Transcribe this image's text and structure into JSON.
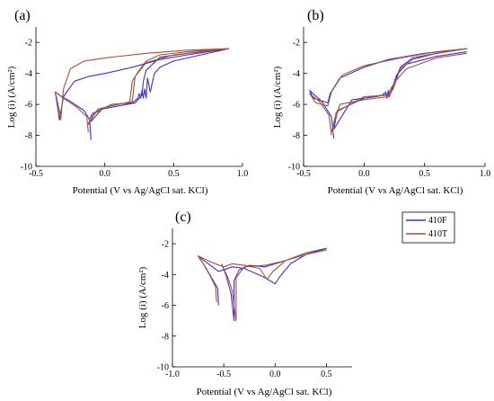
{
  "legend": {
    "entries": [
      {
        "name": "410F",
        "color": "#3b2fd6"
      },
      {
        "name": "410T",
        "color": "#a4523a"
      }
    ]
  },
  "chart_data": [
    {
      "panel": "(a)",
      "type": "line",
      "xlabel": "Potential (V vs Ag/AgCl sat. KCl)",
      "ylabel": "Log (i) (A/cm²)",
      "xlim": [
        -0.5,
        1.0
      ],
      "ylim": [
        -10,
        -1
      ],
      "xticks": [
        -0.5,
        0.0,
        0.5,
        1.0
      ],
      "xtick_labels": [
        "-0.5",
        "0.0",
        "0.5",
        "1.0"
      ],
      "yticks": [
        -2,
        -4,
        -6,
        -8,
        -10
      ],
      "ytick_labels": [
        "-2",
        "-4",
        "-6",
        "-8",
        "-10"
      ],
      "grid": false,
      "series": [
        {
          "name": "410F",
          "color": "#3b2fd6",
          "points": [
            [
              -0.1,
              -8.3
            ],
            [
              -0.11,
              -7.0
            ],
            [
              -0.15,
              -6.4
            ],
            [
              -0.25,
              -5.8
            ],
            [
              -0.33,
              -5.4
            ],
            [
              -0.36,
              -5.2
            ],
            [
              -0.34,
              -6.3
            ],
            [
              -0.33,
              -7.0
            ],
            [
              -0.3,
              -5.5
            ],
            [
              -0.22,
              -4.5
            ],
            [
              -0.12,
              -4.2
            ],
            [
              0.0,
              -4.0
            ],
            [
              0.2,
              -3.6
            ],
            [
              0.4,
              -3.1
            ],
            [
              0.6,
              -2.8
            ],
            [
              0.9,
              -2.4
            ],
            [
              0.6,
              -2.7
            ],
            [
              0.4,
              -2.95
            ],
            [
              0.3,
              -3.8
            ],
            [
              0.28,
              -4.5
            ],
            [
              0.27,
              -5.4
            ],
            [
              0.22,
              -5.9
            ],
            [
              0.1,
              -6.1
            ],
            [
              -0.02,
              -6.3
            ],
            [
              -0.1,
              -7.1
            ],
            [
              -0.09,
              -6.6
            ],
            [
              0.05,
              -6.0
            ],
            [
              0.2,
              -5.9
            ],
            [
              0.24,
              -5.6
            ],
            [
              0.25,
              -5.3
            ],
            [
              0.26,
              -5.6
            ],
            [
              0.27,
              -5.1
            ],
            [
              0.28,
              -5.6
            ],
            [
              0.29,
              -5.0
            ],
            [
              0.3,
              -5.6
            ],
            [
              0.31,
              -4.3
            ],
            [
              0.33,
              -5.2
            ],
            [
              0.36,
              -4.0
            ],
            [
              0.4,
              -3.6
            ],
            [
              0.5,
              -3.2
            ],
            [
              0.7,
              -2.8
            ],
            [
              0.9,
              -2.4
            ]
          ]
        },
        {
          "name": "410T",
          "color": "#a4523a",
          "points": [
            [
              -0.12,
              -7.8
            ],
            [
              -0.13,
              -6.8
            ],
            [
              -0.2,
              -6.2
            ],
            [
              -0.3,
              -5.6
            ],
            [
              -0.36,
              -5.2
            ],
            [
              -0.33,
              -6.4
            ],
            [
              -0.32,
              -7.0
            ],
            [
              -0.3,
              -5.0
            ],
            [
              -0.25,
              -3.7
            ],
            [
              -0.15,
              -3.2
            ],
            [
              0.0,
              -3.0
            ],
            [
              0.3,
              -2.7
            ],
            [
              0.6,
              -2.5
            ],
            [
              0.9,
              -2.4
            ],
            [
              0.6,
              -2.6
            ],
            [
              0.4,
              -2.8
            ],
            [
              0.3,
              -3.2
            ],
            [
              0.25,
              -3.8
            ],
            [
              0.22,
              -4.2
            ],
            [
              0.2,
              -5.8
            ],
            [
              0.05,
              -6.1
            ],
            [
              -0.05,
              -6.3
            ],
            [
              -0.12,
              -7.3
            ],
            [
              -0.1,
              -6.7
            ],
            [
              0.05,
              -6.0
            ],
            [
              0.18,
              -5.9
            ],
            [
              0.2,
              -4.5
            ],
            [
              0.22,
              -4.2
            ],
            [
              0.3,
              -3.3
            ],
            [
              0.5,
              -2.8
            ],
            [
              0.7,
              -2.6
            ],
            [
              0.9,
              -2.4
            ]
          ]
        }
      ]
    },
    {
      "panel": "(b)",
      "type": "line",
      "xlabel": "Potential (V vs Ag/AgCl sat. KCl)",
      "ylabel": "Log (i) (A/cm²)",
      "xlim": [
        -0.5,
        1.0
      ],
      "ylim": [
        -10,
        -1
      ],
      "xticks": [
        -0.5,
        0.0,
        0.5,
        1.0
      ],
      "xtick_labels": [
        "-0.5",
        "0.0",
        "0.5",
        "1.0"
      ],
      "yticks": [
        -2,
        -4,
        -6,
        -8,
        -10
      ],
      "ytick_labels": [
        "-2",
        "-4",
        "-6",
        "-8",
        "-10"
      ],
      "grid": false,
      "series": [
        {
          "name": "410F",
          "color": "#3b2fd6",
          "points": [
            [
              -0.25,
              -8.2
            ],
            [
              -0.27,
              -6.8
            ],
            [
              -0.35,
              -5.8
            ],
            [
              -0.45,
              -5.1
            ],
            [
              -0.42,
              -5.6
            ],
            [
              -0.3,
              -5.9
            ],
            [
              -0.28,
              -5.3
            ],
            [
              -0.2,
              -4.3
            ],
            [
              0.0,
              -3.6
            ],
            [
              0.2,
              -3.1
            ],
            [
              0.5,
              -2.7
            ],
            [
              0.85,
              -2.4
            ],
            [
              0.6,
              -2.7
            ],
            [
              0.4,
              -3.0
            ],
            [
              0.3,
              -3.6
            ],
            [
              0.25,
              -4.6
            ],
            [
              0.22,
              -5.3
            ],
            [
              0.1,
              -5.5
            ],
            [
              -0.1,
              -5.7
            ],
            [
              -0.25,
              -7.6
            ],
            [
              -0.22,
              -6.4
            ],
            [
              0.0,
              -5.6
            ],
            [
              0.15,
              -5.4
            ],
            [
              0.18,
              -5.2
            ],
            [
              0.19,
              -5.6
            ],
            [
              0.2,
              -5.1
            ],
            [
              0.21,
              -5.5
            ],
            [
              0.23,
              -5.0
            ],
            [
              0.27,
              -4.1
            ],
            [
              0.35,
              -3.4
            ],
            [
              0.6,
              -2.9
            ],
            [
              0.85,
              -2.6
            ]
          ]
        },
        {
          "name": "410T",
          "color": "#a4523a",
          "points": [
            [
              -0.27,
              -8.0
            ],
            [
              -0.29,
              -6.7
            ],
            [
              -0.37,
              -5.8
            ],
            [
              -0.45,
              -5.3
            ],
            [
              -0.4,
              -5.9
            ],
            [
              -0.3,
              -6.1
            ],
            [
              -0.27,
              -5.2
            ],
            [
              -0.18,
              -4.1
            ],
            [
              0.0,
              -3.5
            ],
            [
              0.3,
              -3.0
            ],
            [
              0.6,
              -2.6
            ],
            [
              0.85,
              -2.4
            ],
            [
              0.6,
              -2.7
            ],
            [
              0.4,
              -3.1
            ],
            [
              0.3,
              -3.7
            ],
            [
              0.24,
              -5.0
            ],
            [
              0.2,
              -5.5
            ],
            [
              0.0,
              -5.7
            ],
            [
              -0.2,
              -6.0
            ],
            [
              -0.27,
              -7.8
            ],
            [
              -0.23,
              -6.5
            ],
            [
              0.0,
              -5.5
            ],
            [
              0.2,
              -5.4
            ],
            [
              0.22,
              -5.0
            ],
            [
              0.26,
              -4.5
            ],
            [
              0.35,
              -3.7
            ],
            [
              0.6,
              -3.0
            ],
            [
              0.85,
              -2.7
            ]
          ]
        }
      ]
    },
    {
      "panel": "(c)",
      "type": "line",
      "xlabel": "Potential (V vs Ag/AgCl sat. KCl)",
      "ylabel": "Log (i) (A/cm²)",
      "xlim": [
        -1.0,
        0.75
      ],
      "ylim": [
        -10,
        -1
      ],
      "xticks": [
        -1.0,
        -0.5,
        0.0,
        0.5
      ],
      "xtick_labels": [
        "-1.0",
        "-0.5",
        "0.0",
        "0.5"
      ],
      "yticks": [
        -2,
        -4,
        -6,
        -8,
        -10
      ],
      "ytick_labels": [
        "-2",
        "-4",
        "-6",
        "-8",
        "-10"
      ],
      "grid": false,
      "series": [
        {
          "name": "410F",
          "color": "#3b2fd6",
          "points": [
            [
              -0.55,
              -6.0
            ],
            [
              -0.56,
              -4.9
            ],
            [
              -0.62,
              -4.2
            ],
            [
              -0.68,
              -3.5
            ],
            [
              -0.75,
              -2.8
            ],
            [
              -0.65,
              -3.3
            ],
            [
              -0.55,
              -3.8
            ],
            [
              -0.5,
              -3.7
            ],
            [
              -0.42,
              -3.5
            ],
            [
              -0.3,
              -3.6
            ],
            [
              -0.1,
              -4.2
            ],
            [
              0.0,
              -4.6
            ],
            [
              0.05,
              -4.1
            ],
            [
              0.15,
              -3.3
            ],
            [
              0.3,
              -2.7
            ],
            [
              0.5,
              -2.3
            ],
            [
              0.3,
              -2.6
            ],
            [
              0.1,
              -3.1
            ],
            [
              -0.1,
              -3.5
            ],
            [
              -0.25,
              -3.4
            ],
            [
              -0.35,
              -3.7
            ],
            [
              -0.4,
              -4.4
            ],
            [
              -0.4,
              -7.0
            ],
            [
              -0.43,
              -5.2
            ],
            [
              -0.48,
              -4.0
            ],
            [
              -0.52,
              -3.3
            ]
          ]
        },
        {
          "name": "410T",
          "color": "#a4523a",
          "points": [
            [
              -0.57,
              -5.8
            ],
            [
              -0.58,
              -4.8
            ],
            [
              -0.64,
              -4.0
            ],
            [
              -0.7,
              -3.3
            ],
            [
              -0.75,
              -2.8
            ],
            [
              -0.62,
              -3.2
            ],
            [
              -0.5,
              -3.5
            ],
            [
              -0.42,
              -3.3
            ],
            [
              -0.3,
              -3.4
            ],
            [
              -0.15,
              -3.6
            ],
            [
              -0.08,
              -4.3
            ],
            [
              -0.02,
              -3.8
            ],
            [
              0.1,
              -3.1
            ],
            [
              0.3,
              -2.6
            ],
            [
              0.5,
              -2.4
            ],
            [
              0.3,
              -2.7
            ],
            [
              0.1,
              -3.1
            ],
            [
              -0.1,
              -3.4
            ],
            [
              -0.3,
              -3.5
            ],
            [
              -0.38,
              -4.2
            ],
            [
              -0.38,
              -7.0
            ],
            [
              -0.42,
              -5.0
            ],
            [
              -0.46,
              -4.2
            ],
            [
              -0.5,
              -3.6
            ]
          ]
        }
      ]
    }
  ]
}
